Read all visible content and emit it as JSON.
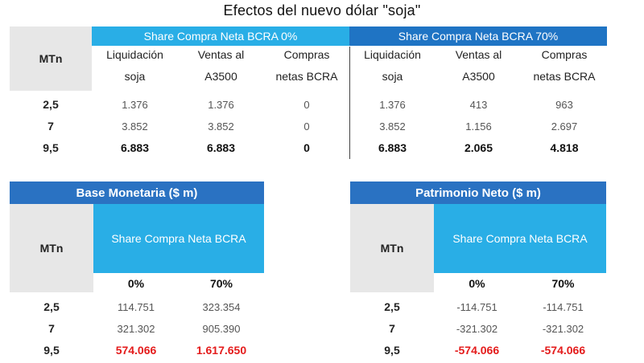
{
  "title": "Efectos del nuevo dólar \"soja\"",
  "top_table": {
    "row_label_header": "MTn",
    "group_headers": [
      "Share Compra Neta BCRA 0%",
      "Share Compra Neta BCRA 70%"
    ],
    "col_headers": [
      [
        "Liquidación",
        "soja"
      ],
      [
        "Ventas al",
        "A3500"
      ],
      [
        "Compras",
        "netas BCRA"
      ],
      [
        "Liquidación",
        "soja"
      ],
      [
        "Ventas al",
        "A3500"
      ],
      [
        "Compras",
        "netas BCRA"
      ]
    ],
    "rows": [
      {
        "label": "2,5",
        "values": [
          "1.376",
          "1.376",
          "0",
          "1.376",
          "413",
          "963"
        ]
      },
      {
        "label": "7",
        "values": [
          "3.852",
          "3.852",
          "0",
          "3.852",
          "1.156",
          "2.697"
        ]
      },
      {
        "label": "9,5",
        "values": [
          "6.883",
          "6.883",
          "0",
          "6.883",
          "2.065",
          "4.818"
        ]
      }
    ]
  },
  "base_monetaria": {
    "title": "Base Monetaria ($ m)",
    "row_label_header": "MTn",
    "subheader": "Share Compra Neta BCRA",
    "cols": [
      "0%",
      "70%"
    ],
    "rows": [
      {
        "label": "2,5",
        "values": [
          "114.751",
          "323.354"
        ]
      },
      {
        "label": "7",
        "values": [
          "321.302",
          "905.390"
        ]
      },
      {
        "label": "9,5",
        "values": [
          "574.066",
          "1.617.650"
        ]
      }
    ]
  },
  "patrimonio_neto": {
    "title": "Patrimonio Neto ($ m)",
    "row_label_header": "MTn",
    "subheader": "Share Compra Neta BCRA",
    "cols": [
      "0%",
      "70%"
    ],
    "rows": [
      {
        "label": "2,5",
        "values": [
          "-114.751",
          "-114.751"
        ]
      },
      {
        "label": "7",
        "values": [
          "-321.302",
          "-321.302"
        ]
      },
      {
        "label": "9,5",
        "values": [
          "-574.066",
          "-574.066"
        ]
      }
    ]
  },
  "colors": {
    "group_0": "#29aee6",
    "group_70": "#1f74c4",
    "panel_bar": "#2a72c2",
    "panel_header": "#29aee6",
    "highlight_red": "#e41b1b",
    "label_grey": "#e7e7e7"
  }
}
